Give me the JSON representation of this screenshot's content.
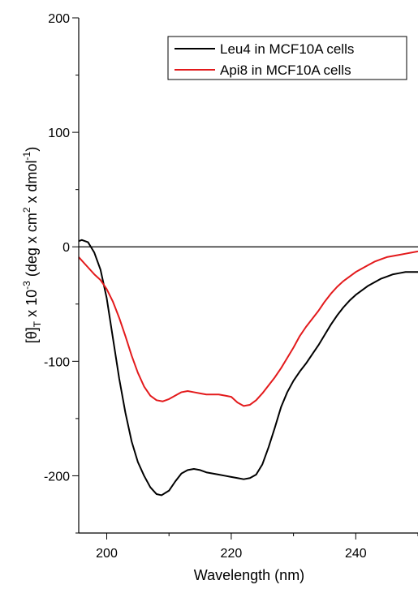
{
  "chart_data": {
    "type": "line",
    "xlabel": "Wavelength (nm)",
    "ylabel": {
      "prefix": "[θ]",
      "subscript": "T",
      "mid": " x 10",
      "exponent": "-3",
      "unit_a": " (deg x cm",
      "unit_a_exp": "2",
      "unit_b": " x dmol",
      "unit_b_exp": "-1",
      "unit_end": ")"
    },
    "xlim": [
      195.5,
      250
    ],
    "ylim": [
      -250,
      200
    ],
    "xticks": [
      200,
      220,
      240
    ],
    "yticks": [
      200,
      100,
      0,
      -100,
      -200
    ],
    "zero_line": true,
    "legend_position": "top-right",
    "series": [
      {
        "name": "Leu4 in MCF10A cells",
        "color": "#000000",
        "x": [
          195.5,
          196.0,
          197.0,
          198.0,
          199.0,
          200.0,
          201.0,
          202.0,
          203.0,
          204.0,
          205.0,
          206.0,
          207.0,
          208.0,
          208.8,
          210.0,
          211.0,
          212.0,
          213.0,
          214.0,
          215.0,
          216.0,
          217.0,
          218.0,
          219.0,
          220.0,
          221.0,
          222.0,
          223.0,
          224.0,
          225.0,
          226.0,
          227.0,
          228.0,
          229.0,
          230.0,
          231.0,
          232.0,
          233.0,
          234.0,
          235.0,
          236.0,
          237.0,
          238.0,
          239.0,
          240.0,
          241.0,
          242.0,
          243.0,
          244.0,
          245.0,
          246.0,
          247.0,
          248.0,
          249.0,
          250.0
        ],
        "y": [
          5,
          6,
          4,
          -5,
          -20,
          -45,
          -80,
          -115,
          -145,
          -170,
          -188,
          -200,
          -210,
          -216,
          -217,
          -213,
          -205,
          -198,
          -195,
          -194,
          -195,
          -197,
          -198,
          -199,
          -200,
          -201,
          -202,
          -203,
          -202,
          -199,
          -190,
          -175,
          -158,
          -140,
          -127,
          -117,
          -109,
          -102,
          -94,
          -86,
          -77,
          -68,
          -60,
          -53,
          -47,
          -42,
          -38,
          -34,
          -31,
          -28,
          -26,
          -24,
          -23,
          -22,
          -22,
          -22
        ]
      },
      {
        "name": "Api8 in MCF10A cells",
        "color": "#e31a1c",
        "x": [
          195.5,
          196.0,
          197.0,
          198.0,
          199.0,
          200.0,
          201.0,
          202.0,
          203.0,
          204.0,
          205.0,
          206.0,
          207.0,
          208.0,
          209.0,
          210.0,
          211.0,
          212.0,
          213.0,
          214.0,
          215.0,
          216.0,
          217.0,
          218.0,
          219.0,
          220.0,
          221.0,
          222.0,
          223.0,
          224.0,
          225.0,
          226.0,
          227.0,
          228.0,
          229.0,
          230.0,
          231.0,
          232.0,
          233.0,
          234.0,
          235.0,
          236.0,
          237.0,
          238.0,
          239.0,
          240.0,
          241.0,
          242.0,
          243.0,
          244.0,
          245.0,
          246.0,
          247.0,
          248.0,
          249.0,
          250.0
        ],
        "y": [
          -9,
          -12,
          -18,
          -24,
          -29,
          -37,
          -48,
          -62,
          -78,
          -95,
          -110,
          -122,
          -130,
          -134,
          -135,
          -133,
          -130,
          -127,
          -126,
          -127,
          -128,
          -129,
          -129,
          -129,
          -130,
          -131,
          -136,
          -139,
          -138,
          -134,
          -128,
          -121,
          -114,
          -106,
          -97,
          -88,
          -78,
          -70,
          -63,
          -56,
          -48,
          -41,
          -35,
          -30,
          -26,
          -22,
          -19,
          -16,
          -13,
          -11,
          -9,
          -8,
          -7,
          -6,
          -5,
          -4
        ]
      }
    ]
  }
}
